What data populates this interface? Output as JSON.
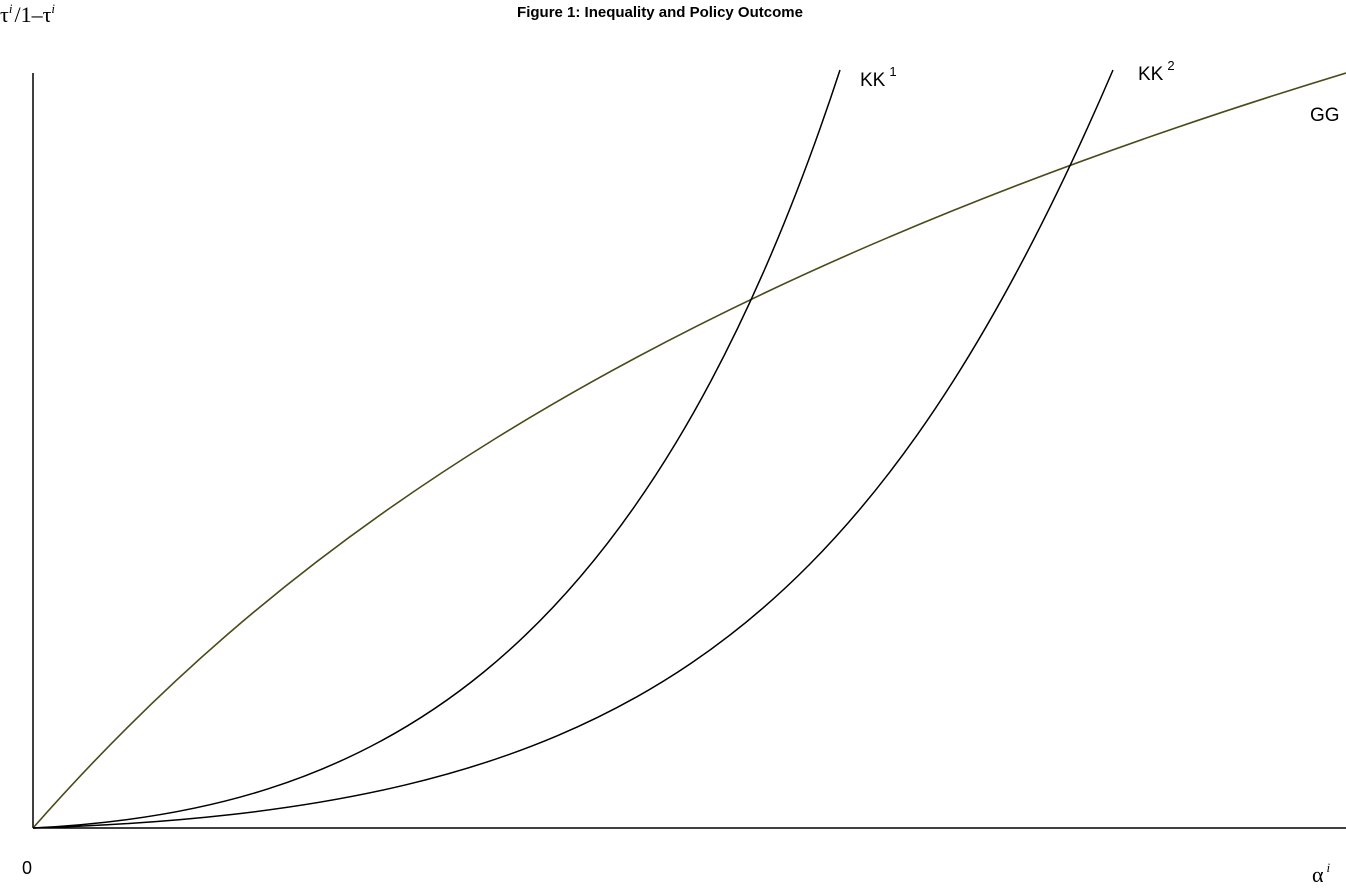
{
  "figure": {
    "title": "Figure 1: Inequality and Policy Outcome",
    "y_axis_label": {
      "base1": "τ",
      "sup1": "i",
      "middle": "/1–τ",
      "sup2": "i"
    },
    "x_axis_label": {
      "base": "α",
      "sup": "i"
    },
    "origin_label": "0",
    "curves": [
      {
        "id": "KK1",
        "base": "KK",
        "sup": "1",
        "color": "#000000"
      },
      {
        "id": "KK2",
        "base": "KK",
        "sup": "2",
        "color": "#000000"
      },
      {
        "id": "GG",
        "base": "GG",
        "sup": "",
        "color": "#4a4a1a"
      }
    ]
  }
}
